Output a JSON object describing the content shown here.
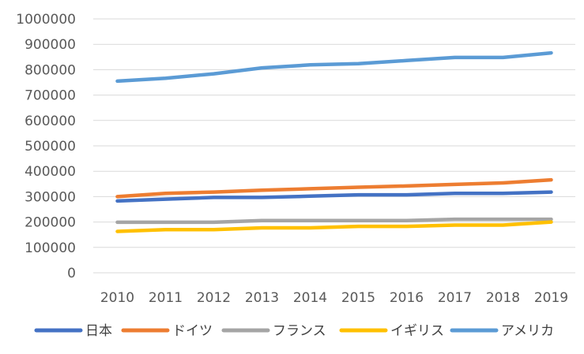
{
  "chart_data": {
    "type": "line",
    "title": "",
    "xlabel": "",
    "ylabel": "",
    "categories": [
      "2010",
      "2011",
      "2012",
      "2013",
      "2014",
      "2015",
      "2016",
      "2017",
      "2018",
      "2019"
    ],
    "ylim": [
      0,
      1000000
    ],
    "yticks": [
      0,
      100000,
      200000,
      300000,
      400000,
      500000,
      600000,
      700000,
      800000,
      900000,
      1000000
    ],
    "grid": true,
    "legend_position": "bottom",
    "series": [
      {
        "name": "日本",
        "color": "#4472C4",
        "values": [
          283000,
          290000,
          297000,
          297000,
          302000,
          307000,
          307000,
          313000,
          313000,
          318000
        ]
      },
      {
        "name": "ドイツ",
        "color": "#ED7D31",
        "values": [
          300000,
          313000,
          318000,
          325000,
          331000,
          337000,
          342000,
          348000,
          354000,
          366000
        ]
      },
      {
        "name": "フランス",
        "color": "#A5A5A5",
        "values": [
          199000,
          199000,
          199000,
          206000,
          206000,
          206000,
          206000,
          211000,
          211000,
          211000
        ]
      },
      {
        "name": "イギリス",
        "color": "#FFC000",
        "values": [
          163000,
          170000,
          170000,
          177000,
          177000,
          183000,
          183000,
          188000,
          188000,
          200000
        ]
      },
      {
        "name": "アメリカ",
        "color": "#5B9BD5",
        "values": [
          755000,
          766000,
          784000,
          807000,
          819000,
          824000,
          836000,
          848000,
          848000,
          866000
        ]
      }
    ]
  }
}
